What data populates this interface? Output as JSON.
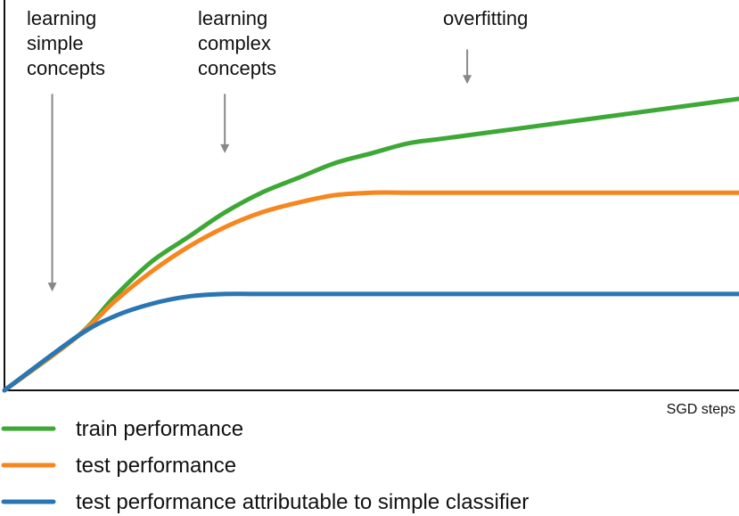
{
  "chart_data": {
    "type": "line",
    "xlabel": "SGD steps",
    "ylabel": "",
    "grid": false,
    "legend_position": "bottom-left",
    "series": [
      {
        "name": "train performance",
        "color": "#3da836",
        "points": [
          [
            0,
            0
          ],
          [
            10,
            11
          ],
          [
            15,
            19
          ],
          [
            20,
            26
          ],
          [
            25,
            31
          ],
          [
            30,
            36
          ],
          [
            35,
            40
          ],
          [
            40,
            43
          ],
          [
            45,
            46
          ],
          [
            50,
            48
          ],
          [
            55,
            50
          ],
          [
            60,
            51
          ],
          [
            70,
            53
          ],
          [
            80,
            55
          ],
          [
            90,
            57
          ],
          [
            100,
            59
          ]
        ]
      },
      {
        "name": "test performance",
        "color": "#f7861f",
        "points": [
          [
            0,
            0
          ],
          [
            10,
            11
          ],
          [
            15,
            18
          ],
          [
            20,
            24
          ],
          [
            25,
            29
          ],
          [
            30,
            33
          ],
          [
            35,
            36
          ],
          [
            40,
            38
          ],
          [
            45,
            39.5
          ],
          [
            50,
            40
          ],
          [
            55,
            40
          ],
          [
            60,
            40
          ],
          [
            70,
            40
          ],
          [
            80,
            40
          ],
          [
            100,
            40
          ]
        ]
      },
      {
        "name": "test performance attributable to simple classifier",
        "color": "#2a76b3",
        "points": [
          [
            0,
            0
          ],
          [
            10,
            11
          ],
          [
            15,
            15
          ],
          [
            20,
            17.5
          ],
          [
            25,
            19
          ],
          [
            30,
            19.5
          ],
          [
            35,
            19.5
          ],
          [
            50,
            19.5
          ],
          [
            100,
            19.5
          ]
        ]
      }
    ],
    "annotations": [
      {
        "lines": [
          "learning",
          "simple",
          "concepts"
        ],
        "arrow_x": 6.5,
        "arrow_top_y": 60,
        "arrow_tip_y": 20
      },
      {
        "lines": [
          "learning",
          "complex",
          "concepts"
        ],
        "arrow_x": 30,
        "arrow_top_y": 60,
        "arrow_tip_y": 48
      },
      {
        "lines": [
          "overfitting"
        ],
        "arrow_x": 63,
        "arrow_top_y": 69,
        "arrow_tip_y": 62
      }
    ],
    "xlim": [
      0,
      100
    ],
    "ylim": [
      0,
      79
    ]
  }
}
